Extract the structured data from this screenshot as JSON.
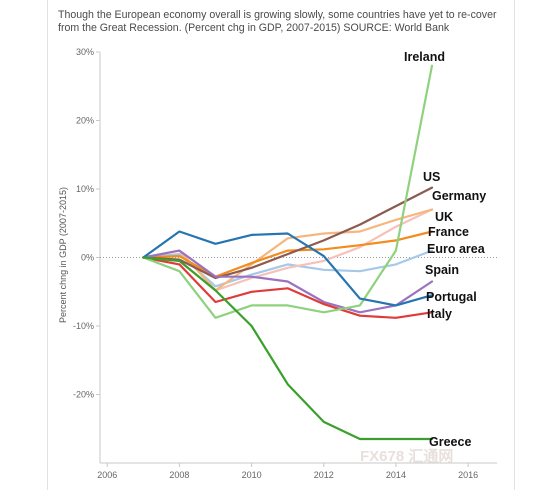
{
  "caption": "Though the European economy overall is growing slowly, some countries have yet to re-cover from the Great Recession. (Percent chg in GDP, 2007-2015) SOURCE: World Bank",
  "watermark": "FX678 汇通网",
  "chart_data": {
    "type": "line",
    "title": "Though the European economy overall is growing slowly, some countries have yet to re-cover from the Great Recession. (Percent chg in GDP, 2007-2015) SOURCE: World Bank",
    "xlabel": "",
    "ylabel": "Percent chng in GDP (2007-2015)",
    "xlim": [
      2005.8,
      2016.8
    ],
    "ylim": [
      -30,
      30
    ],
    "x_ticks": [
      2006,
      2008,
      2010,
      2012,
      2014,
      2016
    ],
    "y_ticks": [
      30,
      20,
      10,
      0,
      -10,
      -20
    ],
    "y_tick_labels": [
      "30%",
      "20%",
      "10%",
      "0%",
      "-10%",
      "-20%"
    ],
    "zero_line": "dotted",
    "grid": false,
    "legend": "none (series labels at right end of lines)",
    "x": [
      2007,
      2008,
      2009,
      2010,
      2011,
      2012,
      2013,
      2014,
      2015
    ],
    "series": [
      {
        "name": "Ireland",
        "color": "#8fd27e",
        "values": [
          0,
          -2.0,
          -8.8,
          -7.0,
          -7.0,
          -8.0,
          -7.0,
          1.0,
          28.0
        ]
      },
      {
        "name": "US",
        "color": "#8c5a4f",
        "values": [
          0,
          -0.3,
          -3.0,
          -1.5,
          0.5,
          2.5,
          4.8,
          7.5,
          10.2
        ]
      },
      {
        "name": "Germany",
        "color": "#f5b77e",
        "values": [
          0,
          1.0,
          -4.8,
          -1.0,
          2.8,
          3.5,
          3.8,
          5.5,
          7.0
        ]
      },
      {
        "name": "UK",
        "color": "#f7c1b8",
        "values": [
          0,
          -0.5,
          -4.8,
          -3.0,
          -1.5,
          -0.5,
          1.5,
          4.5,
          7.0
        ]
      },
      {
        "name": "France",
        "color": "#f28c1c",
        "values": [
          0,
          0.2,
          -2.8,
          -0.8,
          1.0,
          1.2,
          1.8,
          2.5,
          3.8
        ]
      },
      {
        "name": "Euro area",
        "color": "#a6c9e8",
        "values": [
          0,
          0.5,
          -4.2,
          -2.5,
          -1.0,
          -1.8,
          -2.0,
          -1.0,
          1.0
        ]
      },
      {
        "name": "Spain",
        "color": "#9b72c0",
        "values": [
          0,
          1.0,
          -2.8,
          -2.8,
          -3.5,
          -6.5,
          -8.0,
          -7.0,
          -3.5
        ]
      },
      {
        "name": "Portugal",
        "color": "#2475b0",
        "values": [
          0,
          3.8,
          2.0,
          3.3,
          3.5,
          0.2,
          -6.0,
          -7.0,
          -5.5
        ]
      },
      {
        "name": "Italy",
        "color": "#e03b3b",
        "values": [
          0,
          -1.0,
          -6.5,
          -5.0,
          -4.5,
          -6.8,
          -8.5,
          -8.8,
          -8.0
        ]
      },
      {
        "name": "Greece",
        "color": "#3aa02c",
        "values": [
          0,
          -0.5,
          -4.8,
          -10.0,
          -18.5,
          -24.0,
          -26.5,
          -26.5,
          -26.5
        ]
      }
    ]
  }
}
